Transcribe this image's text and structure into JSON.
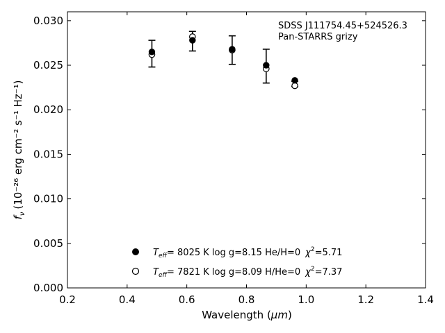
{
  "chart_data": {
    "type": "scatter",
    "xlabel": "Wavelength",
    "xlabel_unit": "μm",
    "ylabel_prefix": "f",
    "ylabel_prefix_sub": "ν",
    "ylabel_units": "(10⁻²⁶ erg cm⁻² s⁻¹ Hz⁻¹)",
    "xlim": [
      0.2,
      1.4
    ],
    "ylim": [
      0.0,
      0.031
    ],
    "x_ticks": [
      "0.2",
      "0.4",
      "0.6",
      "0.8",
      "1.0",
      "1.2",
      "1.4"
    ],
    "y_ticks": [
      "0.000",
      "0.005",
      "0.010",
      "0.015",
      "0.020",
      "0.025",
      "0.030"
    ],
    "grid": false,
    "annotations": [
      "SDSS J111754.45+524526.3",
      "Pan-STARRS grizy"
    ],
    "observed": {
      "x": [
        0.483,
        0.619,
        0.752,
        0.866,
        0.962
      ],
      "y": [
        0.0263,
        0.0277,
        0.0267,
        0.0249,
        0.0229
      ],
      "err": [
        0.0015,
        0.0011,
        0.0016,
        0.0019,
        0.0003
      ]
    },
    "series": [
      {
        "marker": "filled",
        "legend": "Teff=  8025 K  log g=8.15  He/H=0  χ²=5.71",
        "legend_parts": {
          "t": "T",
          "t_sub": "eff",
          "rest": "=  8025 K  log g=8.15  He/H=0",
          "chi": "χ",
          "chi_sup": "2",
          "chi_val": "=5.71"
        },
        "x": [
          0.483,
          0.619,
          0.752,
          0.866,
          0.962
        ],
        "y": [
          0.0265,
          0.0278,
          0.0268,
          0.025,
          0.0233
        ]
      },
      {
        "marker": "open",
        "legend": "Teff=  7821 K  log g=8.09  H/He=0  χ²=7.37",
        "legend_parts": {
          "t": "T",
          "t_sub": "eff",
          "rest": "=  7821 K  log g=8.09  H/He=0",
          "chi": "χ",
          "chi_sup": "2",
          "chi_val": "=7.37"
        },
        "x": [
          0.483,
          0.619,
          0.752,
          0.866,
          0.962
        ],
        "y": [
          0.0262,
          0.0282,
          0.0267,
          0.0246,
          0.0227
        ]
      }
    ],
    "legend_position": "lower-center"
  }
}
